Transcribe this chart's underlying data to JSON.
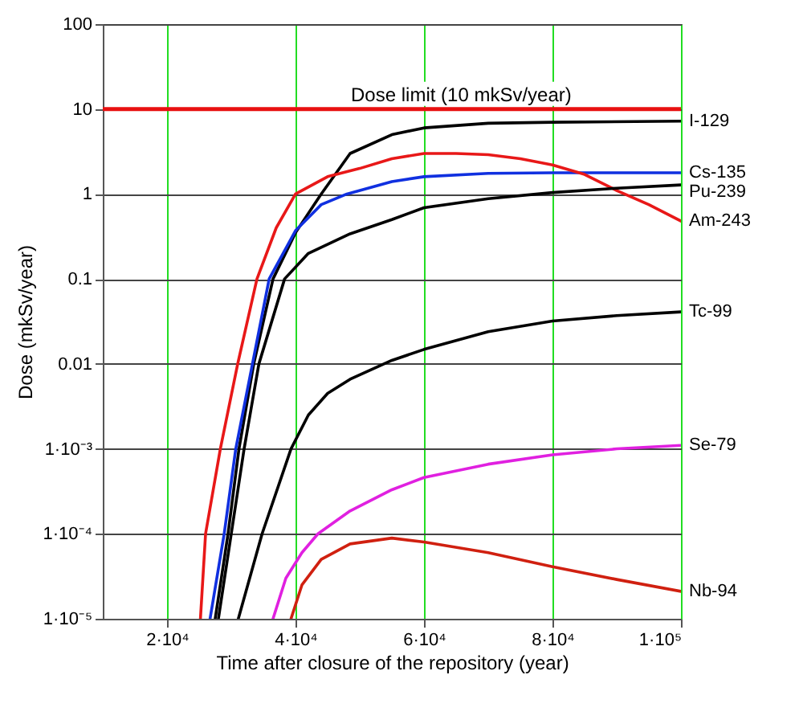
{
  "chart_data": {
    "type": "line",
    "xlabel": "Time after closure of the repository (year)",
    "ylabel": "Dose (mkSv/year)",
    "log": "y",
    "grid": true,
    "xlim": [
      10000,
      100000
    ],
    "xticks": [
      {
        "value": 20000,
        "label": "2·10⁴"
      },
      {
        "value": 40000,
        "label": "4·10⁴"
      },
      {
        "value": 60000,
        "label": "6·10⁴"
      },
      {
        "value": 80000,
        "label": "8·10⁴"
      },
      {
        "value": 100000,
        "label": "1·10⁵"
      }
    ],
    "ylim": [
      1e-05,
      100
    ],
    "yticks": [
      {
        "value": 1e-05,
        "label": "1·10⁻⁵"
      },
      {
        "value": 0.0001,
        "label": "1·10⁻⁴"
      },
      {
        "value": 0.001,
        "label": "1·10⁻³"
      },
      0.01,
      0.1,
      1,
      10,
      100
    ],
    "ref_lines": [
      {
        "axis": "y",
        "value": 10,
        "label": "Dose limit  (10 mkSv/year)",
        "color": "#e81010"
      }
    ],
    "series": [
      {
        "name": "I-129",
        "color": "#000000",
        "x": [
          27500,
          29500,
          31200,
          33500,
          36500,
          40000,
          44000,
          48500,
          55000,
          60000,
          70000,
          80000,
          100000
        ],
        "values": [
          1e-05,
          0.0001,
          0.001,
          0.01,
          0.1,
          0.35,
          1.0,
          3.0,
          5.0,
          6.0,
          6.8,
          7.0,
          7.2
        ]
      },
      {
        "name": "Cs-135",
        "color": "#1030e0",
        "x": [
          26700,
          28900,
          30700,
          33300,
          35900,
          40000,
          44000,
          48000,
          55000,
          60000,
          70000,
          80000,
          100000
        ],
        "values": [
          1e-05,
          0.0001,
          0.001,
          0.01,
          0.1,
          0.37,
          0.75,
          1.0,
          1.4,
          1.6,
          1.75,
          1.78,
          1.78
        ]
      },
      {
        "name": "Am-243",
        "color": "#e81818",
        "x": [
          25200,
          26000,
          28300,
          31000,
          34000,
          37000,
          40000,
          45000,
          50000,
          55000,
          60000,
          65000,
          70000,
          75000,
          80000,
          85000,
          90000,
          95000,
          100000
        ],
        "values": [
          1e-05,
          0.0001,
          0.001,
          0.01,
          0.1,
          0.4,
          1.0,
          1.6,
          2.0,
          2.6,
          3.0,
          3.0,
          2.9,
          2.6,
          2.2,
          1.7,
          1.1,
          0.75,
          0.48
        ]
      },
      {
        "name": "Pu-239",
        "color": "#000000",
        "x": [
          28000,
          30000,
          32000,
          34300,
          38300,
          42000,
          48500,
          55000,
          60000,
          70000,
          80000,
          90000,
          100000
        ],
        "values": [
          1e-05,
          0.0001,
          0.001,
          0.01,
          0.1,
          0.2,
          0.34,
          0.5,
          0.69,
          0.88,
          1.04,
          1.17,
          1.28
        ]
      },
      {
        "name": "Tc-99",
        "color": "#000000",
        "x": [
          31100,
          34800,
          39300,
          42000,
          45000,
          48500,
          55000,
          60000,
          70000,
          80000,
          90000,
          100000
        ],
        "values": [
          1e-05,
          0.0001,
          0.001,
          0.0025,
          0.0045,
          0.0066,
          0.011,
          0.0148,
          0.024,
          0.032,
          0.037,
          0.041
        ]
      },
      {
        "name": "Se-79",
        "color": "#e020e0",
        "x": [
          36500,
          38500,
          41000,
          43500,
          48500,
          55000,
          60000,
          70000,
          80000,
          90000,
          100000
        ],
        "values": [
          1e-05,
          3e-05,
          6e-05,
          0.0001,
          0.000186,
          0.00033,
          0.00046,
          0.00066,
          0.00085,
          0.001,
          0.0011
        ]
      },
      {
        "name": "Nb-94",
        "color": "#d02010",
        "x": [
          39300,
          41000,
          44000,
          48500,
          55000,
          60000,
          70000,
          80000,
          90000,
          100000
        ],
        "values": [
          1e-05,
          2.5e-05,
          5e-05,
          7.6e-05,
          8.9e-05,
          8e-05,
          6e-05,
          4.1e-05,
          2.9e-05,
          2.1e-05
        ]
      }
    ]
  }
}
